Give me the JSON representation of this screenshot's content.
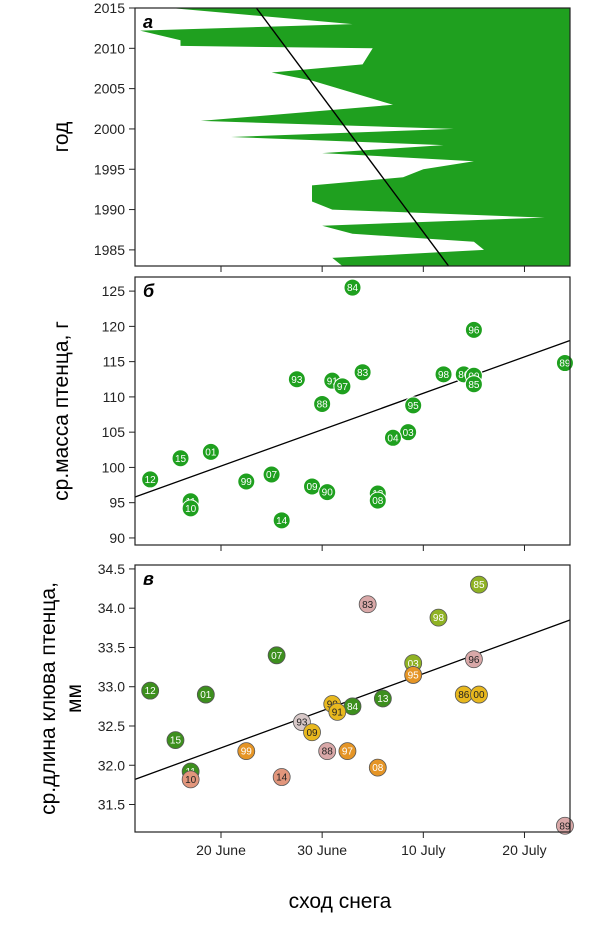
{
  "colors": {
    "green": "#1FA01F",
    "dark_green": "#3D8F1E",
    "olive": "#8FB224",
    "yellow": "#E8B81E",
    "orange": "#E59526",
    "salmon": "#E2967C",
    "pink": "#D9A8A8",
    "light": "#D8C8C8"
  },
  "x_axis": {
    "label": "сход снега",
    "ticks": [
      {
        "label": "20 June",
        "day": 20
      },
      {
        "label": "30 June",
        "day": 30
      },
      {
        "label": "10 July",
        "day": 40
      },
      {
        "label": "20 July",
        "day": 50
      }
    ],
    "range": [
      11.5,
      54.5
    ]
  },
  "chart_data": [
    {
      "type": "area",
      "panel": "а",
      "ylabel": "год",
      "ylim": [
        1983,
        2015
      ],
      "yticks": [
        1985,
        1990,
        1995,
        2000,
        2005,
        2010,
        2015
      ],
      "x_unit": "day (1 = 1 June)",
      "boundary": [
        {
          "year": 2015,
          "day": 15
        },
        {
          "year": 2013,
          "day": 33
        },
        {
          "year": 2012.2,
          "day": 12
        },
        {
          "year": 2011,
          "day": 16
        },
        {
          "year": 2010.3,
          "day": 16
        },
        {
          "year": 2010,
          "day": 35
        },
        {
          "year": 2008,
          "day": 34
        },
        {
          "year": 2007,
          "day": 25
        },
        {
          "year": 2006,
          "day": 29
        },
        {
          "year": 2003,
          "day": 37
        },
        {
          "year": 2001,
          "day": 18
        },
        {
          "year": 2000,
          "day": 43
        },
        {
          "year": 1999,
          "day": 21
        },
        {
          "year": 1998,
          "day": 42
        },
        {
          "year": 1997,
          "day": 30
        },
        {
          "year": 1996,
          "day": 45
        },
        {
          "year": 1995,
          "day": 40
        },
        {
          "year": 1994,
          "day": 38
        },
        {
          "year": 1993,
          "day": 29
        },
        {
          "year": 1991,
          "day": 29
        },
        {
          "year": 1990,
          "day": 31
        },
        {
          "year": 1989,
          "day": 52
        },
        {
          "year": 1988,
          "day": 30
        },
        {
          "year": 1987,
          "day": 33
        },
        {
          "year": 1986,
          "day": 45
        },
        {
          "year": 1985,
          "day": 46
        },
        {
          "year": 1984,
          "day": 31
        },
        {
          "year": 1983,
          "day": 32
        }
      ],
      "trend": [
        {
          "year": 2015,
          "day": 23.5
        },
        {
          "year": 1983,
          "day": 42.5
        }
      ]
    },
    {
      "type": "scatter",
      "panel": "б",
      "ylabel": "ср.масса птенца, г",
      "ylim": [
        89,
        127
      ],
      "yticks": [
        90,
        95,
        100,
        105,
        110,
        115,
        120,
        125
      ],
      "points": [
        {
          "label": "84",
          "day": 33,
          "value": 125.5
        },
        {
          "label": "96",
          "day": 45,
          "value": 119.5
        },
        {
          "label": "89",
          "day": 54,
          "value": 114.8
        },
        {
          "label": "98",
          "day": 42,
          "value": 113.2
        },
        {
          "label": "86",
          "day": 44,
          "value": 113.2
        },
        {
          "label": "00",
          "day": 45,
          "value": 113
        },
        {
          "label": "85",
          "day": 45,
          "value": 111.8
        },
        {
          "label": "83",
          "day": 34,
          "value": 113.5
        },
        {
          "label": "93",
          "day": 27.5,
          "value": 112.5
        },
        {
          "label": "91",
          "day": 31,
          "value": 112.3
        },
        {
          "label": "97",
          "day": 32,
          "value": 111.5
        },
        {
          "label": "88",
          "day": 30,
          "value": 109
        },
        {
          "label": "95",
          "day": 39,
          "value": 108.8
        },
        {
          "label": "03",
          "day": 38.5,
          "value": 105
        },
        {
          "label": "04",
          "day": 37,
          "value": 104.2
        },
        {
          "label": "01",
          "day": 19,
          "value": 102.2
        },
        {
          "label": "15",
          "day": 16,
          "value": 101.3
        },
        {
          "label": "07",
          "day": 25,
          "value": 99
        },
        {
          "label": "99",
          "day": 22.5,
          "value": 98
        },
        {
          "label": "12",
          "day": 13,
          "value": 98.3
        },
        {
          "label": "09",
          "day": 29,
          "value": 97.3
        },
        {
          "label": "90",
          "day": 30.5,
          "value": 96.5
        },
        {
          "label": "13",
          "day": 35.5,
          "value": 96.3
        },
        {
          "label": "08",
          "day": 35.5,
          "value": 95.3
        },
        {
          "label": "11",
          "day": 17,
          "value": 95.2
        },
        {
          "label": "10",
          "day": 17,
          "value": 94.2
        },
        {
          "label": "14",
          "day": 26,
          "value": 92.5
        }
      ],
      "trend": [
        {
          "day": 11.5,
          "value": 95.8
        },
        {
          "day": 54.5,
          "value": 118
        }
      ]
    },
    {
      "type": "scatter",
      "panel": "в",
      "ylabel": "ср.длина клюва птенца, мм",
      "ylim": [
        31.15,
        34.55
      ],
      "yticks": [
        31.5,
        32,
        32.5,
        33,
        33.5,
        34,
        34.5
      ],
      "points": [
        {
          "label": "85",
          "day": 45.5,
          "value": 34.3,
          "color": "olive"
        },
        {
          "label": "83",
          "day": 34.5,
          "value": 34.05,
          "color": "pink"
        },
        {
          "label": "98",
          "day": 41.5,
          "value": 33.88,
          "color": "olive"
        },
        {
          "label": "07",
          "day": 25.5,
          "value": 33.4,
          "color": "dark_green"
        },
        {
          "label": "03",
          "day": 39,
          "value": 33.3,
          "color": "olive"
        },
        {
          "label": "96",
          "day": 45,
          "value": 33.35,
          "color": "pink"
        },
        {
          "label": "95",
          "day": 39,
          "value": 33.15,
          "color": "orange"
        },
        {
          "label": "12",
          "day": 13,
          "value": 32.95,
          "color": "dark_green"
        },
        {
          "label": "01",
          "day": 18.5,
          "value": 32.9,
          "color": "dark_green"
        },
        {
          "label": "86",
          "day": 44,
          "value": 32.9,
          "color": "yellow"
        },
        {
          "label": "00",
          "day": 45.5,
          "value": 32.9,
          "color": "yellow"
        },
        {
          "label": "13",
          "day": 36,
          "value": 32.85,
          "color": "dark_green"
        },
        {
          "label": "90",
          "day": 31,
          "value": 32.78,
          "color": "yellow"
        },
        {
          "label": "84",
          "day": 33,
          "value": 32.75,
          "color": "dark_green"
        },
        {
          "label": "91",
          "day": 31.5,
          "value": 32.68,
          "color": "yellow"
        },
        {
          "label": "93",
          "day": 28,
          "value": 32.55,
          "color": "light"
        },
        {
          "label": "09",
          "day": 29,
          "value": 32.42,
          "color": "yellow"
        },
        {
          "label": "15",
          "day": 15.5,
          "value": 32.32,
          "color": "dark_green"
        },
        {
          "label": "99",
          "day": 22.5,
          "value": 32.18,
          "color": "orange"
        },
        {
          "label": "88",
          "day": 30.5,
          "value": 32.18,
          "color": "pink"
        },
        {
          "label": "97",
          "day": 32.5,
          "value": 32.18,
          "color": "orange"
        },
        {
          "label": "08",
          "day": 35.5,
          "value": 31.97,
          "color": "orange"
        },
        {
          "label": "11",
          "day": 17,
          "value": 31.92,
          "color": "dark_green"
        },
        {
          "label": "14",
          "day": 26,
          "value": 31.85,
          "color": "salmon"
        },
        {
          "label": "10",
          "day": 17,
          "value": 31.82,
          "color": "salmon"
        },
        {
          "label": "89",
          "day": 54,
          "value": 31.23,
          "color": "pink"
        }
      ],
      "trend": [
        {
          "day": 11.5,
          "value": 31.82
        },
        {
          "day": 54.5,
          "value": 33.85
        }
      ]
    }
  ]
}
